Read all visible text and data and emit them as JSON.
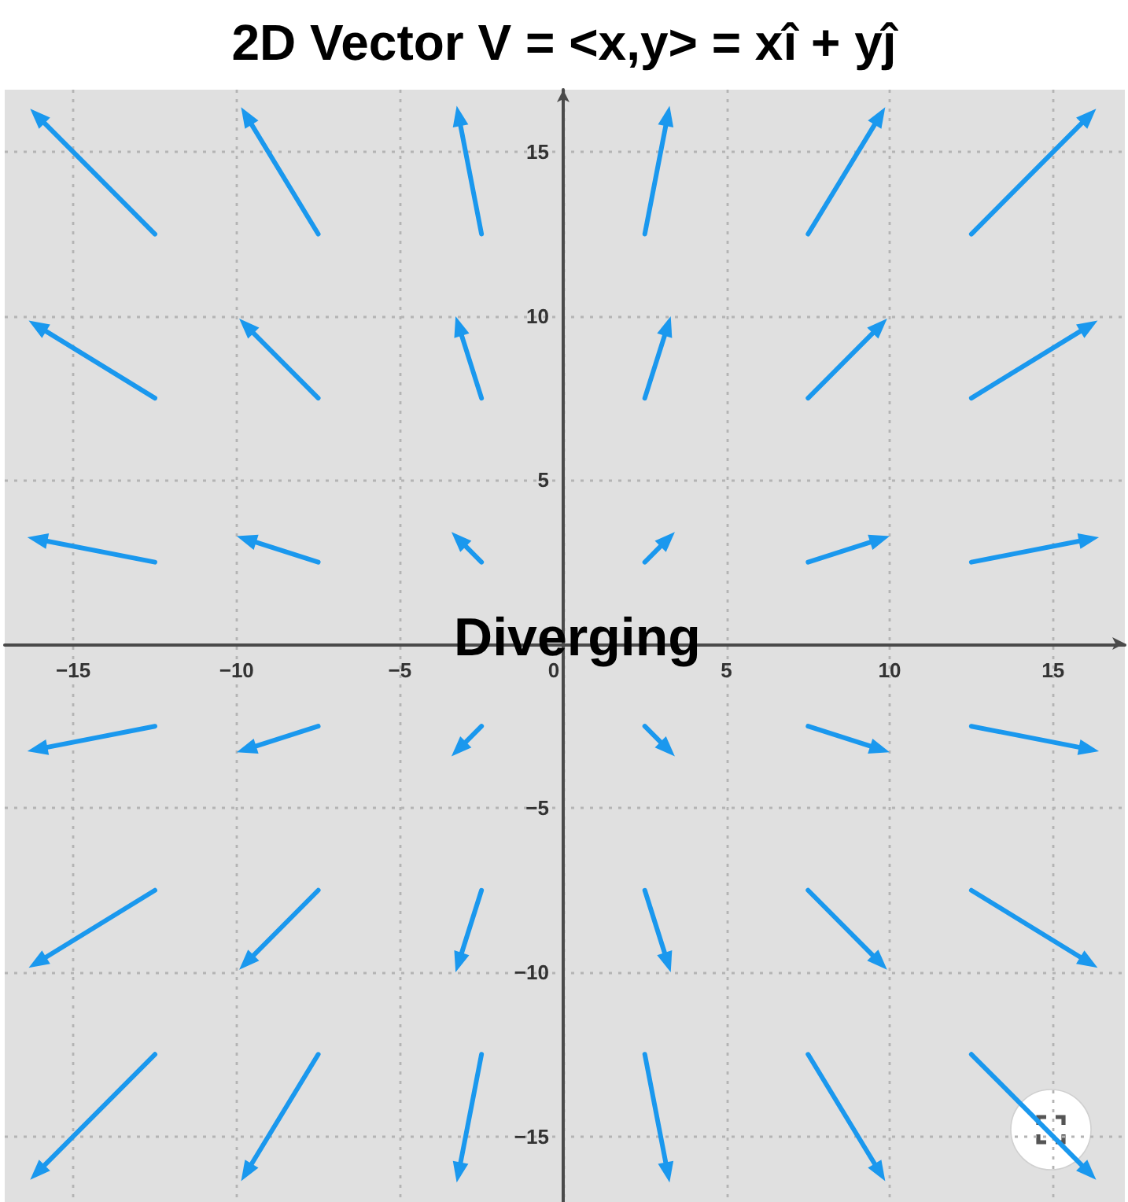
{
  "chart_data": {
    "type": "line",
    "title": "2D Vector V = <x,y> = xî + yĵ",
    "annotations": [
      "Diverging"
    ],
    "series": [
      {
        "color": "#1a98ee",
        "x": [
          -12.5,
          -16.1
        ],
        "values": [
          12.5,
          16.1
        ]
      },
      {
        "color": "#1a98ee",
        "x": [
          -7.5,
          -9.7
        ],
        "values": [
          12.5,
          16.1
        ]
      },
      {
        "color": "#1a98ee",
        "x": [
          -2.5,
          -3.2
        ],
        "values": [
          12.5,
          16.1
        ]
      },
      {
        "color": "#1a98ee",
        "x": [
          2.5,
          3.2
        ],
        "values": [
          12.5,
          16.1
        ]
      },
      {
        "color": "#1a98ee",
        "x": [
          7.5,
          9.7
        ],
        "values": [
          12.5,
          16.1
        ]
      },
      {
        "color": "#1a98ee",
        "x": [
          12.5,
          16.1
        ],
        "values": [
          12.5,
          16.1
        ]
      },
      {
        "color": "#1a98ee",
        "x": [
          -12.5,
          -16.1
        ],
        "values": [
          7.5,
          9.7
        ]
      },
      {
        "color": "#1a98ee",
        "x": [
          -7.5,
          -9.7
        ],
        "values": [
          7.5,
          9.7
        ]
      },
      {
        "color": "#1a98ee",
        "x": [
          -2.5,
          -3.2
        ],
        "values": [
          7.5,
          9.7
        ]
      },
      {
        "color": "#1a98ee",
        "x": [
          2.5,
          3.2
        ],
        "values": [
          7.5,
          9.7
        ]
      },
      {
        "color": "#1a98ee",
        "x": [
          7.5,
          9.7
        ],
        "values": [
          7.5,
          9.7
        ]
      },
      {
        "color": "#1a98ee",
        "x": [
          12.5,
          16.1
        ],
        "values": [
          7.5,
          9.7
        ]
      },
      {
        "color": "#1a98ee",
        "x": [
          -12.5,
          -16.1
        ],
        "values": [
          2.5,
          3.2
        ]
      },
      {
        "color": "#1a98ee",
        "x": [
          -7.5,
          -9.7
        ],
        "values": [
          2.5,
          3.2
        ]
      },
      {
        "color": "#1a98ee",
        "x": [
          -2.5,
          -3.2
        ],
        "values": [
          2.5,
          3.2
        ]
      },
      {
        "color": "#1a98ee",
        "x": [
          2.5,
          3.2
        ],
        "values": [
          2.5,
          3.2
        ]
      },
      {
        "color": "#1a98ee",
        "x": [
          7.5,
          9.7
        ],
        "values": [
          2.5,
          3.2
        ]
      },
      {
        "color": "#1a98ee",
        "x": [
          12.5,
          16.1
        ],
        "values": [
          2.5,
          3.2
        ]
      },
      {
        "color": "#1a98ee",
        "x": [
          -12.5,
          -16.1
        ],
        "values": [
          -2.5,
          -3.2
        ]
      },
      {
        "color": "#1a98ee",
        "x": [
          -7.5,
          -9.7
        ],
        "values": [
          -2.5,
          -3.2
        ]
      },
      {
        "color": "#1a98ee",
        "x": [
          -2.5,
          -3.2
        ],
        "values": [
          -2.5,
          -3.2
        ]
      },
      {
        "color": "#1a98ee",
        "x": [
          2.5,
          3.2
        ],
        "values": [
          -2.5,
          -3.2
        ]
      },
      {
        "color": "#1a98ee",
        "x": [
          7.5,
          9.7
        ],
        "values": [
          -2.5,
          -3.2
        ]
      },
      {
        "color": "#1a98ee",
        "x": [
          12.5,
          16.1
        ],
        "values": [
          -2.5,
          -3.2
        ]
      },
      {
        "color": "#1a98ee",
        "x": [
          -12.5,
          -16.1
        ],
        "values": [
          -7.5,
          -9.7
        ]
      },
      {
        "color": "#1a98ee",
        "x": [
          -7.5,
          -9.7
        ],
        "values": [
          -7.5,
          -9.7
        ]
      },
      {
        "color": "#1a98ee",
        "x": [
          -2.5,
          -3.2
        ],
        "values": [
          -7.5,
          -9.7
        ]
      },
      {
        "color": "#1a98ee",
        "x": [
          2.5,
          3.2
        ],
        "values": [
          -7.5,
          -9.7
        ]
      },
      {
        "color": "#1a98ee",
        "x": [
          7.5,
          9.7
        ],
        "values": [
          -7.5,
          -9.7
        ]
      },
      {
        "color": "#1a98ee",
        "x": [
          12.5,
          16.1
        ],
        "values": [
          -7.5,
          -9.7
        ]
      },
      {
        "color": "#1a98ee",
        "x": [
          -12.5,
          -16.1
        ],
        "values": [
          -12.5,
          -16.1
        ]
      },
      {
        "color": "#1a98ee",
        "x": [
          -7.5,
          -9.7
        ],
        "values": [
          -12.5,
          -16.1
        ]
      },
      {
        "color": "#1a98ee",
        "x": [
          -2.5,
          -3.2
        ],
        "values": [
          -12.5,
          -16.1
        ]
      },
      {
        "color": "#1a98ee",
        "x": [
          2.5,
          3.2
        ],
        "values": [
          -12.5,
          -16.1
        ]
      },
      {
        "color": "#1a98ee",
        "x": [
          7.5,
          9.7
        ],
        "values": [
          -12.5,
          -16.1
        ]
      },
      {
        "color": "#1a98ee",
        "x": [
          12.5,
          16.1
        ],
        "values": [
          -12.5,
          -16.1
        ]
      }
    ],
    "xlim": [
      -17.1,
      17.2
    ],
    "ylim": [
      -17,
      16.9
    ],
    "xticks": [
      {
        "value": -15,
        "label": "−15"
      },
      {
        "value": -10,
        "label": "−10"
      },
      {
        "value": -5,
        "label": "−5"
      },
      0,
      5,
      10,
      15
    ],
    "yticks": [
      {
        "value": -15,
        "label": "−15"
      },
      {
        "value": -10,
        "label": "−10"
      },
      {
        "value": -5,
        "label": "−5"
      },
      5,
      10,
      15
    ],
    "grid": true,
    "line_style": "solid"
  }
}
